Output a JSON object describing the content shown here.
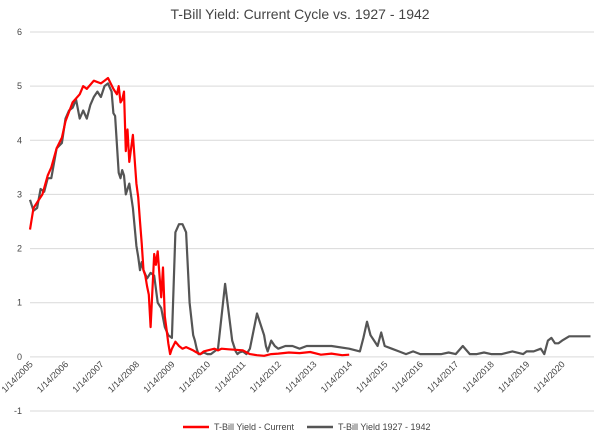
{
  "chart_data": {
    "type": "line",
    "title": "T-Bill Yield: Current Cycle vs. 1927 - 1942",
    "xlabel": "",
    "ylabel": "",
    "ylim": [
      -1,
      6
    ],
    "y_ticks": [
      "6",
      "5",
      "4",
      "3",
      "2",
      "1",
      "0",
      "-1"
    ],
    "x_tick_labels": [
      "1/14/2005",
      "1/14/2006",
      "1/14/2007",
      "1/14/2008",
      "1/14/2009",
      "1/14/2010",
      "1/14/2011",
      "1/14/2012",
      "1/14/2013",
      "1/14/2014",
      "1/14/2015",
      "1/14/2016",
      "1/14/2017",
      "1/14/2018",
      "1/14/2019",
      "1/14/2020"
    ],
    "grid": true,
    "legend_position": "bottom",
    "series": [
      {
        "name": "T-Bill Yield - Current",
        "color": "#ff0000",
        "x": [
          2005.0,
          2005.1,
          2005.2,
          2005.35,
          2005.5,
          2005.6,
          2005.75,
          2005.9,
          2006.0,
          2006.2,
          2006.4,
          2006.5,
          2006.6,
          2006.8,
          2007.0,
          2007.1,
          2007.2,
          2007.35,
          2007.45,
          2007.5,
          2007.55,
          2007.6,
          2007.65,
          2007.7,
          2007.75,
          2007.8,
          2007.9,
          2008.0,
          2008.05,
          2008.1,
          2008.15,
          2008.2,
          2008.25,
          2008.3,
          2008.35,
          2008.4,
          2008.5,
          2008.55,
          2008.6,
          2008.65,
          2008.7,
          2008.75,
          2008.8,
          2008.85,
          2008.9,
          2008.95,
          2009.0,
          2009.1,
          2009.2,
          2009.3,
          2009.4,
          2009.5,
          2009.6,
          2009.7,
          2009.8,
          2009.9,
          2010.0,
          2010.2,
          2010.3,
          2010.4,
          2010.6,
          2010.8,
          2011.0,
          2011.2,
          2011.4,
          2011.6,
          2011.8,
          2012.0,
          2012.3,
          2012.6,
          2012.9,
          2013.2,
          2013.5,
          2013.8,
          2014.0
        ],
        "y": [
          2.35,
          2.75,
          2.85,
          3.0,
          3.35,
          3.5,
          3.85,
          4.05,
          4.35,
          4.7,
          4.85,
          5.0,
          4.95,
          5.1,
          5.05,
          5.1,
          5.15,
          4.95,
          4.85,
          5.0,
          4.7,
          4.75,
          4.9,
          3.8,
          4.2,
          3.6,
          4.1,
          3.2,
          2.95,
          2.5,
          2.1,
          1.6,
          1.5,
          1.3,
          1.15,
          0.55,
          1.9,
          1.7,
          1.95,
          1.5,
          1.1,
          1.65,
          0.75,
          0.5,
          0.25,
          0.05,
          0.15,
          0.28,
          0.2,
          0.15,
          0.18,
          0.15,
          0.12,
          0.08,
          0.05,
          0.1,
          0.12,
          0.15,
          0.12,
          0.15,
          0.14,
          0.13,
          0.12,
          0.05,
          0.03,
          0.02,
          0.05,
          0.06,
          0.08,
          0.07,
          0.09,
          0.04,
          0.06,
          0.03,
          0.04
        ]
      },
      {
        "name": "T-Bill Yield 1927 - 1942",
        "color": "#555555",
        "x": [
          2005.0,
          2005.1,
          2005.2,
          2005.3,
          2005.4,
          2005.5,
          2005.6,
          2005.75,
          2005.9,
          2006.0,
          2006.1,
          2006.2,
          2006.3,
          2006.4,
          2006.5,
          2006.6,
          2006.7,
          2006.8,
          2006.9,
          2007.0,
          2007.1,
          2007.2,
          2007.3,
          2007.35,
          2007.4,
          2007.5,
          2007.55,
          2007.6,
          2007.65,
          2007.7,
          2007.8,
          2007.9,
          2008.0,
          2008.05,
          2008.1,
          2008.15,
          2008.2,
          2008.3,
          2008.4,
          2008.5,
          2008.6,
          2008.7,
          2008.8,
          2008.9,
          2009.0,
          2009.1,
          2009.2,
          2009.3,
          2009.4,
          2009.5,
          2009.6,
          2009.65,
          2009.7,
          2009.75,
          2009.8,
          2009.9,
          2010.0,
          2010.1,
          2010.2,
          2010.3,
          2010.5,
          2010.7,
          2010.8,
          2010.85,
          2010.9,
          2011.0,
          2011.1,
          2011.2,
          2011.4,
          2011.6,
          2011.65,
          2011.7,
          2011.8,
          2011.9,
          2012.0,
          2012.2,
          2012.4,
          2012.6,
          2012.8,
          2013.0,
          2013.5,
          2014.0,
          2014.3,
          2014.4,
          2014.5,
          2014.6,
          2014.7,
          2014.8,
          2014.9,
          2015.0,
          2015.2,
          2015.4,
          2015.6,
          2015.8,
          2016.0,
          2016.2,
          2016.4,
          2016.6,
          2016.8,
          2017.0,
          2017.2,
          2017.4,
          2017.6,
          2017.8,
          2018.0,
          2018.3,
          2018.6,
          2018.9,
          2019.0,
          2019.2,
          2019.4,
          2019.5,
          2019.6,
          2019.7,
          2019.8,
          2019.9,
          2020.0,
          2020.2,
          2020.4,
          2020.6,
          2020.8
        ],
        "y": [
          2.9,
          2.7,
          2.75,
          3.1,
          3.05,
          3.3,
          3.3,
          3.85,
          3.95,
          4.4,
          4.55,
          4.6,
          4.75,
          4.4,
          4.55,
          4.4,
          4.65,
          4.8,
          4.9,
          4.8,
          5.0,
          5.05,
          4.9,
          4.5,
          4.45,
          3.4,
          3.3,
          3.45,
          3.35,
          3.0,
          3.2,
          2.75,
          2.05,
          1.85,
          1.6,
          1.75,
          1.6,
          1.45,
          1.55,
          1.5,
          1.0,
          0.9,
          0.55,
          0.4,
          0.35,
          2.3,
          2.45,
          2.45,
          2.3,
          1.0,
          0.4,
          0.3,
          0.15,
          0.05,
          0.05,
          0.08,
          0.05,
          0.05,
          0.1,
          0.15,
          1.35,
          0.3,
          0.1,
          0.05,
          0.08,
          0.1,
          0.05,
          0.15,
          0.8,
          0.4,
          0.2,
          0.1,
          0.3,
          0.2,
          0.15,
          0.2,
          0.2,
          0.15,
          0.2,
          0.2,
          0.2,
          0.15,
          0.1,
          0.35,
          0.65,
          0.4,
          0.3,
          0.2,
          0.45,
          0.2,
          0.15,
          0.1,
          0.05,
          0.1,
          0.05,
          0.05,
          0.05,
          0.05,
          0.08,
          0.05,
          0.2,
          0.05,
          0.05,
          0.08,
          0.05,
          0.05,
          0.1,
          0.05,
          0.1,
          0.1,
          0.15,
          0.05,
          0.3,
          0.35,
          0.25,
          0.25,
          0.3,
          0.38,
          0.38,
          0.38,
          0.38
        ]
      }
    ]
  }
}
